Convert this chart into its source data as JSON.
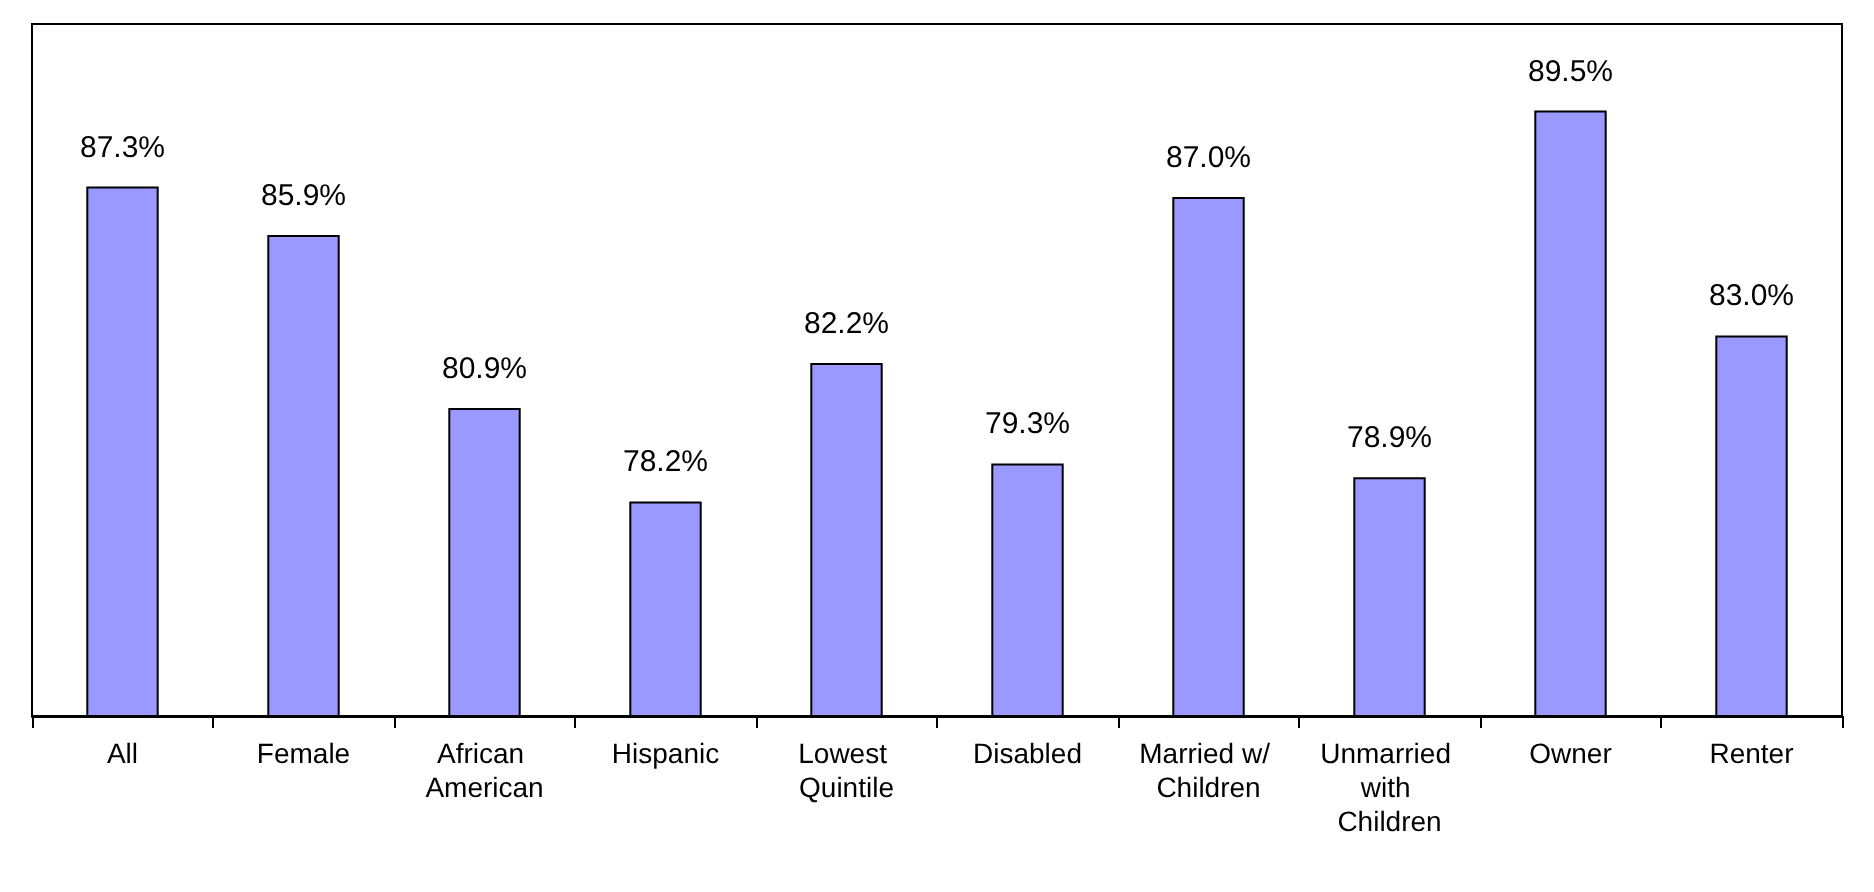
{
  "chart_data": {
    "type": "bar",
    "categories": [
      "All",
      "Female",
      "African American",
      "Hispanic",
      "Lowest Quintile",
      "Disabled",
      "Married w/ Children",
      "Unmarried with Children",
      "Owner",
      "Renter"
    ],
    "values": [
      87.3,
      85.9,
      80.9,
      78.2,
      82.2,
      79.3,
      87.0,
      78.9,
      89.5,
      83.0
    ],
    "value_labels": [
      "87.3%",
      "85.9%",
      "80.9%",
      "78.2%",
      "82.2%",
      "79.3%",
      "87.0%",
      "78.9%",
      "89.5%",
      "83.0%"
    ],
    "color": "#9999ff",
    "ylim": [
      72,
      92
    ],
    "grid": false
  }
}
